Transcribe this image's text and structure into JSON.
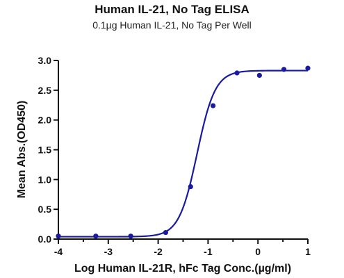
{
  "chart_data": {
    "type": "scatter",
    "title": "Human IL-21, No Tag ELISA",
    "subtitle": "0.1µg Human IL-21, No Tag Per Well",
    "xlabel": "Log Human IL-21R, hFc Tag Conc.(µg/ml)",
    "ylabel": "Mean Abs.(OD450)",
    "xlim": [
      -4,
      1
    ],
    "ylim": [
      0,
      3.0
    ],
    "x_ticks": [
      -4,
      -3,
      -2,
      -1,
      0,
      1
    ],
    "x_tick_labels": [
      "-4",
      "-3",
      "-2",
      "-1",
      "0",
      "1"
    ],
    "y_ticks": [
      0,
      0.5,
      1.0,
      1.5,
      2.0,
      2.5,
      3.0
    ],
    "y_tick_labels": [
      "0.0",
      "0.5",
      "1.0",
      "1.5",
      "2.0",
      "2.5",
      "3.0"
    ],
    "grid": false,
    "legend": "none",
    "series": [
      {
        "x": [
          -4.0,
          -3.25,
          -2.55,
          -1.85,
          -1.35,
          -0.9,
          -0.42,
          0.03,
          0.52,
          1.0
        ],
        "y": [
          0.05,
          0.05,
          0.05,
          0.11,
          0.88,
          2.24,
          2.79,
          2.75,
          2.85,
          2.87
        ],
        "color": "#1a1aa0"
      }
    ],
    "fit_curve": {
      "model": "4PL",
      "bottom": 0.04,
      "top": 2.83,
      "logEC50": -1.22,
      "hill": 2.4,
      "color": "#1a1aa0"
    }
  }
}
